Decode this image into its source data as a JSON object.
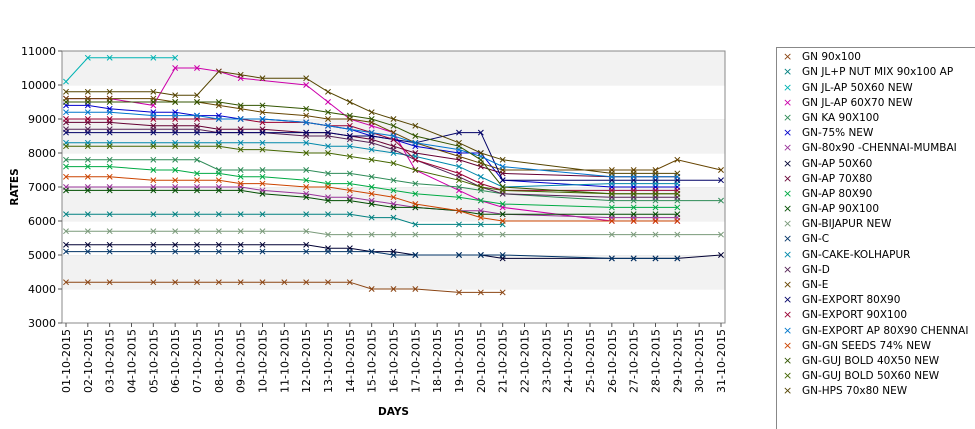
{
  "chart_data": {
    "type": "line",
    "xlabel": "DAYS",
    "ylabel": "RATES",
    "ylim": [
      3000,
      11000
    ],
    "yticks": [
      3000,
      4000,
      5000,
      6000,
      7000,
      8000,
      9000,
      10000,
      11000
    ],
    "categories": [
      "01-10-2015",
      "02-10-2015",
      "03-10-2015",
      "04-10-2015",
      "05-10-2015",
      "06-10-2015",
      "07-10-2015",
      "08-10-2015",
      "09-10-2015",
      "10-10-2015",
      "11-10-2015",
      "12-10-2015",
      "13-10-2015",
      "14-10-2015",
      "15-10-2015",
      "16-10-2015",
      "17-10-2015",
      "18-10-2015",
      "19-10-2015",
      "20-10-2015",
      "21-10-2015",
      "22-10-2015",
      "23-10-2015",
      "24-10-2015",
      "25-10-2015",
      "26-10-2015",
      "27-10-2015",
      "28-10-2015",
      "29-10-2015",
      "30-10-2015",
      "31-10-2015"
    ],
    "grid": "horizontal bands",
    "legend_position": "right",
    "marker": "×",
    "series": [
      {
        "name": "GN 90x100",
        "color": "#8b4513",
        "values": [
          4200,
          4200,
          4200,
          null,
          4200,
          4200,
          4200,
          4200,
          4200,
          4200,
          4200,
          4200,
          4200,
          4200,
          4000,
          4000,
          4000,
          null,
          3900,
          3900,
          3900,
          null,
          null,
          null,
          null,
          null,
          null,
          null,
          null,
          null,
          null
        ]
      },
      {
        "name": "GN JL+P NUT MIX 90x100 AP",
        "color": "#008080",
        "values": [
          6200,
          6200,
          6200,
          null,
          6200,
          6200,
          6200,
          6200,
          6200,
          6200,
          null,
          6200,
          6200,
          6200,
          6100,
          6100,
          5900,
          null,
          5900,
          5900,
          5900,
          null,
          null,
          null,
          null,
          null,
          null,
          null,
          null,
          null,
          null
        ]
      },
      {
        "name": "GN JL-AP 50X60 NEW",
        "color": "#00b3b3",
        "values": [
          10100,
          10800,
          10800,
          null,
          10800,
          10800,
          null,
          null,
          null,
          null,
          null,
          null,
          null,
          null,
          null,
          null,
          null,
          null,
          null,
          null,
          null,
          null,
          null,
          null,
          null,
          null,
          null,
          null,
          null,
          null,
          null
        ]
      },
      {
        "name": "GN JL-AP 60X70 NEW",
        "color": "#cc00aa",
        "values": [
          9600,
          9600,
          9600,
          null,
          9400,
          10500,
          10500,
          10400,
          10200,
          null,
          null,
          10000,
          9500,
          9000,
          8800,
          8600,
          7500,
          null,
          6900,
          6600,
          6400,
          null,
          null,
          null,
          null,
          6000,
          6000,
          6000,
          6000,
          null,
          null
        ]
      },
      {
        "name": "GN KA 90X100",
        "color": "#2e8b57",
        "values": [
          7800,
          7800,
          7800,
          null,
          7800,
          7800,
          7800,
          7500,
          7500,
          7500,
          null,
          7500,
          7400,
          7400,
          7300,
          7200,
          7100,
          null,
          7000,
          6900,
          6800,
          null,
          null,
          null,
          null,
          6600,
          6600,
          6600,
          6600,
          null,
          6600
        ]
      },
      {
        "name": "GN-75% NEW",
        "color": "#0000cc",
        "values": [
          9400,
          9400,
          9300,
          null,
          9200,
          9200,
          9100,
          9100,
          9000,
          9000,
          null,
          8900,
          8800,
          8700,
          8500,
          8400,
          8200,
          null,
          8000,
          8000,
          7200,
          null,
          null,
          null,
          null,
          7000,
          7000,
          7000,
          7000,
          null,
          null
        ]
      },
      {
        "name": "GN-80x90 -CHENNAI-MUMBAI",
        "color": "#993399",
        "values": [
          7000,
          7000,
          7000,
          null,
          7000,
          7000,
          7000,
          7000,
          7000,
          6900,
          null,
          6800,
          6700,
          6700,
          6600,
          6500,
          6400,
          null,
          6300,
          6300,
          6200,
          null,
          null,
          null,
          null,
          6100,
          6100,
          6100,
          6100,
          null,
          null
        ]
      },
      {
        "name": "GN-AP 50X60",
        "color": "#000033",
        "values": [
          5300,
          5300,
          5300,
          null,
          5300,
          5300,
          5300,
          5300,
          5300,
          5300,
          null,
          5300,
          5200,
          5200,
          5100,
          5100,
          5000,
          null,
          5000,
          5000,
          4900,
          null,
          null,
          null,
          null,
          4900,
          4900,
          4900,
          4900,
          null,
          5000
        ]
      },
      {
        "name": "GN-AP 70X80",
        "color": "#660033",
        "values": [
          8900,
          8900,
          8900,
          null,
          8800,
          8800,
          8800,
          8700,
          8700,
          8700,
          null,
          8600,
          8600,
          8500,
          8400,
          8200,
          8000,
          null,
          7800,
          7600,
          7400,
          null,
          null,
          null,
          null,
          7300,
          7300,
          7300,
          7300,
          null,
          null
        ]
      },
      {
        "name": "GN-AP 80X90",
        "color": "#00aa44",
        "values": [
          7600,
          7600,
          7600,
          null,
          7500,
          7500,
          7400,
          7400,
          7300,
          7300,
          null,
          7200,
          7100,
          7100,
          7000,
          6900,
          6800,
          null,
          6700,
          6600,
          6500,
          null,
          null,
          null,
          null,
          6400,
          6400,
          6400,
          6400,
          null,
          null
        ]
      },
      {
        "name": "GN-AP 90X100",
        "color": "#004d00",
        "values": [
          6900,
          6900,
          6900,
          null,
          6900,
          6900,
          6900,
          6900,
          6900,
          6800,
          null,
          6700,
          6600,
          6600,
          6500,
          6400,
          6400,
          null,
          6300,
          6200,
          6200,
          null,
          null,
          null,
          null,
          6200,
          6200,
          6200,
          6200,
          null,
          null
        ]
      },
      {
        "name": "GN-BIJAPUR NEW",
        "color": "#7a9a7a",
        "values": [
          5700,
          5700,
          5700,
          null,
          5700,
          5700,
          5700,
          5700,
          5700,
          5700,
          null,
          5700,
          5600,
          5600,
          5600,
          5600,
          5600,
          null,
          5600,
          5600,
          5600,
          null,
          null,
          null,
          null,
          5600,
          5600,
          5600,
          5600,
          null,
          5600
        ]
      },
      {
        "name": "GN-C",
        "color": "#003366",
        "values": [
          5100,
          5100,
          5100,
          null,
          5100,
          5100,
          5100,
          5100,
          5100,
          5100,
          null,
          5100,
          5100,
          5100,
          5100,
          5000,
          5000,
          null,
          5000,
          5000,
          5000,
          null,
          null,
          null,
          null,
          4900,
          4900,
          4900,
          4900,
          null,
          null
        ]
      },
      {
        "name": "GN-CAKE-KOLHAPUR",
        "color": "#0088aa",
        "values": [
          8300,
          8300,
          8300,
          null,
          8300,
          8300,
          8300,
          8300,
          8300,
          8300,
          null,
          8300,
          8200,
          8200,
          8100,
          8000,
          7900,
          null,
          7600,
          7300,
          7000,
          null,
          null,
          null,
          null,
          7100,
          7100,
          7100,
          7100,
          null,
          null
        ]
      },
      {
        "name": "GN-D",
        "color": "#552255",
        "values": [
          8700,
          8700,
          8700,
          null,
          8700,
          8700,
          8700,
          8600,
          8600,
          8600,
          null,
          8500,
          8500,
          8400,
          8300,
          8100,
          7800,
          null,
          7300,
          7000,
          6800,
          null,
          null,
          null,
          null,
          6700,
          6700,
          6700,
          6700,
          null,
          null
        ]
      },
      {
        "name": "GN-E",
        "color": "#664400",
        "values": [
          9600,
          9600,
          9600,
          null,
          9600,
          9500,
          9500,
          9400,
          9300,
          9200,
          null,
          9100,
          9000,
          9000,
          8900,
          8600,
          8300,
          null,
          7900,
          7700,
          7500,
          null,
          null,
          null,
          null,
          7500,
          7500,
          7500,
          7800,
          null,
          7500
        ]
      },
      {
        "name": "GN-EXPORT 80X90",
        "color": "#000066",
        "values": [
          8600,
          8600,
          8600,
          null,
          8600,
          8600,
          8600,
          8600,
          8600,
          8600,
          null,
          8600,
          8600,
          8500,
          8500,
          8400,
          8300,
          null,
          8600,
          8600,
          7200,
          null,
          null,
          null,
          null,
          7200,
          7200,
          7200,
          7200,
          null,
          7200
        ]
      },
      {
        "name": "GN-EXPORT 90X100",
        "color": "#990033",
        "values": [
          9000,
          9000,
          9000,
          null,
          9000,
          9000,
          9000,
          9000,
          9000,
          8900,
          null,
          8900,
          8800,
          8800,
          8600,
          8400,
          7800,
          null,
          7400,
          7100,
          6900,
          null,
          null,
          null,
          null,
          6900,
          6900,
          6900,
          6900,
          null,
          null
        ]
      },
      {
        "name": "GN-EXPORT AP 80X90 CHENNAI",
        "color": "#0077cc",
        "values": [
          9200,
          9200,
          9200,
          null,
          9100,
          9100,
          9100,
          9000,
          9000,
          9000,
          null,
          8900,
          8800,
          8700,
          8600,
          8500,
          8300,
          null,
          8100,
          7900,
          7600,
          null,
          null,
          null,
          null,
          7300,
          7300,
          7300,
          7300,
          null,
          null
        ]
      },
      {
        "name": "GN-GN SEEDS 74% NEW",
        "color": "#cc4400",
        "values": [
          7300,
          7300,
          7300,
          null,
          7200,
          7200,
          7200,
          7200,
          7100,
          7100,
          null,
          7000,
          7000,
          6900,
          6800,
          6700,
          6500,
          null,
          6300,
          6100,
          6000,
          null,
          null,
          null,
          null,
          6000,
          6000,
          6000,
          6000,
          null,
          null
        ]
      },
      {
        "name": "GN-GUJ BOLD 40X50 NEW",
        "color": "#335500",
        "values": [
          9500,
          9500,
          9500,
          null,
          9500,
          9500,
          9500,
          9500,
          9400,
          9400,
          null,
          9300,
          9200,
          9100,
          9000,
          8800,
          8500,
          null,
          8200,
          7800,
          7000,
          null,
          null,
          null,
          null,
          6800,
          6800,
          6800,
          6800,
          null,
          null
        ]
      },
      {
        "name": "GN-GUJ BOLD 50X60 NEW",
        "color": "#446600",
        "values": [
          8200,
          8200,
          8200,
          null,
          8200,
          8200,
          8200,
          8200,
          8100,
          8100,
          null,
          8000,
          8000,
          7900,
          7800,
          7700,
          7500,
          null,
          7200,
          7000,
          6900,
          null,
          null,
          null,
          null,
          6800,
          6800,
          6800,
          6800,
          null,
          null
        ]
      },
      {
        "name": "GN-HPS  70x80 NEW",
        "color": "#554400",
        "values": [
          9800,
          9800,
          9800,
          null,
          9800,
          9700,
          9700,
          10400,
          10300,
          10200,
          null,
          10200,
          9800,
          9500,
          9200,
          9000,
          8800,
          null,
          8300,
          8000,
          7800,
          null,
          null,
          null,
          null,
          7400,
          7400,
          7400,
          7400,
          null,
          null
        ]
      }
    ]
  },
  "legend": {
    "items": [
      {
        "name": "GN 90x100",
        "color": "#8b4513"
      },
      {
        "name": "GN JL+P NUT MIX 90x100 AP",
        "color": "#008080"
      },
      {
        "name": "GN JL-AP 50X60 NEW",
        "color": "#00b3b3"
      },
      {
        "name": "GN JL-AP 60X70 NEW",
        "color": "#cc00aa"
      },
      {
        "name": "GN KA 90X100",
        "color": "#2e8b57"
      },
      {
        "name": "GN-75% NEW",
        "color": "#0000cc"
      },
      {
        "name": "GN-80x90 -CHENNAI-MUMBAI",
        "color": "#993399"
      },
      {
        "name": "GN-AP 50X60",
        "color": "#000033"
      },
      {
        "name": "GN-AP 70X80",
        "color": "#660033"
      },
      {
        "name": "GN-AP 80X90",
        "color": "#00aa44"
      },
      {
        "name": "GN-AP 90X100",
        "color": "#004d00"
      },
      {
        "name": "GN-BIJAPUR NEW",
        "color": "#7a9a7a"
      },
      {
        "name": "GN-C",
        "color": "#003366"
      },
      {
        "name": "GN-CAKE-KOLHAPUR",
        "color": "#0088aa"
      },
      {
        "name": "GN-D",
        "color": "#552255"
      },
      {
        "name": "GN-E",
        "color": "#664400"
      },
      {
        "name": "GN-EXPORT 80X90",
        "color": "#000066"
      },
      {
        "name": "GN-EXPORT 90X100",
        "color": "#990033"
      },
      {
        "name": "GN-EXPORT AP 80X90 CHENNAI",
        "color": "#0077cc"
      },
      {
        "name": "GN-GN SEEDS 74% NEW",
        "color": "#cc4400"
      },
      {
        "name": "GN-GUJ BOLD 40X50 NEW",
        "color": "#335500"
      },
      {
        "name": "GN-GUJ BOLD 50X60 NEW",
        "color": "#446600"
      },
      {
        "name": "GN-HPS  70x80 NEW",
        "color": "#554400"
      }
    ]
  }
}
